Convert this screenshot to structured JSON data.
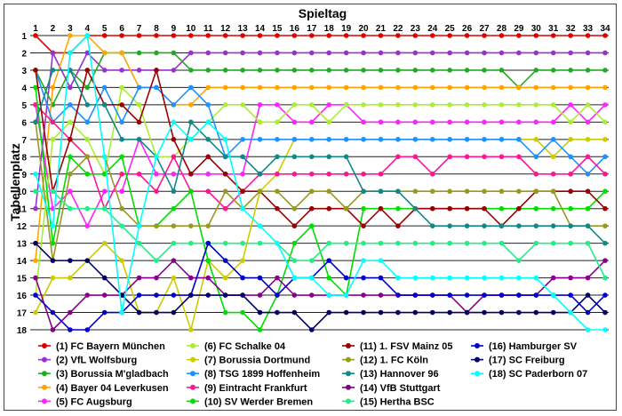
{
  "chart_data": {
    "type": "line",
    "xlabel": "Spieltag",
    "ylabel": "Tabellenplatz",
    "x": [
      1,
      2,
      3,
      4,
      5,
      6,
      7,
      8,
      9,
      10,
      11,
      12,
      13,
      14,
      15,
      16,
      17,
      18,
      19,
      20,
      21,
      22,
      23,
      24,
      25,
      26,
      27,
      28,
      29,
      30,
      31,
      32,
      33,
      34
    ],
    "ylim": [
      1,
      18
    ],
    "y_inverted": true,
    "grid": "horizontal",
    "legend_position": "bottom",
    "series": [
      {
        "name": "(1) FC Bayern München",
        "color": "#dd0000",
        "values": [
          1,
          2,
          2,
          1,
          1,
          1,
          1,
          1,
          1,
          1,
          1,
          1,
          1,
          1,
          1,
          1,
          1,
          1,
          1,
          1,
          1,
          1,
          1,
          1,
          1,
          1,
          1,
          1,
          1,
          1,
          1,
          1,
          1,
          1
        ]
      },
      {
        "name": "(2) VfL Wolfsburg",
        "color": "#9932cc",
        "values": [
          11,
          2,
          4,
          2,
          3,
          3,
          3,
          3,
          3,
          2,
          2,
          2,
          2,
          2,
          2,
          2,
          2,
          2,
          2,
          2,
          2,
          2,
          2,
          2,
          2,
          2,
          2,
          2,
          2,
          2,
          2,
          2,
          2,
          2
        ]
      },
      {
        "name": "(3) Borussia M'gladbach",
        "color": "#22aa22",
        "values": [
          3,
          5,
          3,
          4,
          2,
          2,
          2,
          2,
          2,
          3,
          3,
          3,
          3,
          3,
          3,
          3,
          3,
          3,
          3,
          3,
          3,
          3,
          3,
          3,
          3,
          3,
          3,
          3,
          4,
          3,
          3,
          3,
          3,
          3
        ]
      },
      {
        "name": "(4) Bayer 04 Leverkusen",
        "color": "#ffa500",
        "values": [
          14,
          4,
          1,
          1,
          2,
          2,
          4,
          4,
          5,
          5,
          4,
          4,
          4,
          4,
          4,
          4,
          4,
          4,
          4,
          4,
          4,
          4,
          4,
          4,
          4,
          4,
          4,
          4,
          4,
          4,
          4,
          4,
          4,
          4
        ]
      },
      {
        "name": "(5) FC Augsburg",
        "color": "#ff22ff",
        "values": [
          5,
          11,
          10,
          12,
          10,
          10,
          7,
          9,
          9,
          9,
          9,
          9,
          9,
          5,
          5,
          6,
          6,
          5,
          5,
          6,
          6,
          6,
          6,
          6,
          6,
          6,
          6,
          6,
          6,
          6,
          6,
          5,
          6,
          5
        ]
      },
      {
        "name": "(6) FC Schalke 04",
        "color": "#aaee33",
        "values": [
          16,
          7,
          6,
          7,
          9,
          4,
          5,
          8,
          8,
          7,
          6,
          5,
          5,
          6,
          6,
          5,
          5,
          6,
          5,
          5,
          5,
          5,
          5,
          5,
          5,
          5,
          5,
          5,
          5,
          5,
          5,
          6,
          5,
          6
        ]
      },
      {
        "name": "(7) Borussia Dortmund",
        "color": "#cccc00",
        "values": [
          17,
          15,
          15,
          14,
          13,
          14,
          17,
          17,
          15,
          18,
          14,
          15,
          14,
          10,
          9,
          7,
          7,
          7,
          7,
          7,
          7,
          7,
          7,
          7,
          7,
          7,
          7,
          7,
          7,
          7,
          8,
          7,
          7,
          7
        ]
      },
      {
        "name": "(8) TSG 1899 Hoffenheim",
        "color": "#1e90ff",
        "values": [
          3,
          6,
          5,
          6,
          4,
          6,
          4,
          4,
          5,
          4,
          5,
          8,
          7,
          7,
          7,
          7,
          7,
          7,
          7,
          7,
          7,
          7,
          7,
          7,
          7,
          7,
          7,
          7,
          7,
          8,
          7,
          8,
          9,
          8
        ]
      },
      {
        "name": "(9) Eintracht Frankfurt",
        "color": "#ff1493",
        "values": [
          5,
          6,
          7,
          8,
          11,
          9,
          9,
          10,
          8,
          10,
          10,
          11,
          10,
          9,
          9,
          9,
          9,
          9,
          9,
          9,
          9,
          8,
          8,
          9,
          8,
          8,
          8,
          8,
          8,
          9,
          9,
          9,
          8,
          9
        ]
      },
      {
        "name": "(10) SV Werder Bremen",
        "color": "#00dd00",
        "values": [
          4,
          13,
          8,
          9,
          9,
          8,
          12,
          12,
          11,
          10,
          14,
          17,
          17,
          18,
          16,
          13,
          12,
          15,
          16,
          11,
          11,
          11,
          11,
          11,
          11,
          11,
          11,
          11,
          11,
          11,
          11,
          11,
          11,
          10
        ]
      },
      {
        "name": "(11) 1. FSV Mainz 05",
        "color": "#990000",
        "values": [
          3,
          10,
          7,
          3,
          5,
          5,
          6,
          3,
          7,
          9,
          8,
          9,
          10,
          10,
          11,
          12,
          11,
          11,
          11,
          12,
          11,
          12,
          11,
          11,
          11,
          11,
          11,
          12,
          11,
          10,
          10,
          10,
          10,
          11
        ]
      },
      {
        "name": "(12) 1. FC Köln",
        "color": "#999922",
        "values": [
          6,
          14,
          9,
          8,
          8,
          11,
          12,
          12,
          12,
          12,
          12,
          10,
          11,
          10,
          10,
          11,
          10,
          10,
          11,
          10,
          10,
          10,
          10,
          10,
          10,
          10,
          10,
          10,
          10,
          10,
          10,
          12,
          12,
          12
        ]
      },
      {
        "name": "(13) Hannover 96",
        "color": "#108888",
        "values": [
          6,
          3,
          3,
          5,
          5,
          7,
          7,
          8,
          10,
          6,
          7,
          8,
          8,
          9,
          8,
          8,
          8,
          8,
          8,
          10,
          10,
          10,
          11,
          12,
          12,
          12,
          12,
          12,
          12,
          12,
          12,
          12,
          12,
          13
        ]
      },
      {
        "name": "(14) VfB Stuttgart",
        "color": "#880088",
        "values": [
          15,
          18,
          17,
          16,
          16,
          16,
          15,
          15,
          14,
          15,
          15,
          16,
          16,
          16,
          15,
          16,
          16,
          16,
          16,
          16,
          16,
          16,
          16,
          16,
          16,
          17,
          16,
          16,
          16,
          16,
          15,
          15,
          15,
          14
        ]
      },
      {
        "name": "(15) Hertha BSC",
        "color": "#22ee88",
        "values": [
          10,
          10,
          11,
          11,
          11,
          12,
          13,
          14,
          13,
          13,
          13,
          13,
          13,
          13,
          13,
          14,
          14,
          13,
          13,
          13,
          13,
          13,
          13,
          13,
          13,
          13,
          13,
          13,
          14,
          13,
          13,
          13,
          13,
          15
        ]
      },
      {
        "name": "(16) Hamburger SV",
        "color": "#0000cc",
        "values": [
          16,
          17,
          18,
          18,
          17,
          17,
          16,
          16,
          16,
          16,
          13,
          14,
          15,
          15,
          16,
          15,
          15,
          14,
          15,
          15,
          15,
          16,
          16,
          16,
          16,
          16,
          16,
          16,
          16,
          16,
          16,
          16,
          17,
          16
        ]
      },
      {
        "name": "(17) SC Freiburg",
        "color": "#000066",
        "values": [
          13,
          14,
          14,
          14,
          15,
          16,
          17,
          17,
          17,
          16,
          16,
          16,
          16,
          17,
          17,
          17,
          18,
          17,
          17,
          17,
          17,
          17,
          17,
          17,
          17,
          17,
          17,
          17,
          17,
          17,
          17,
          17,
          16,
          17
        ]
      },
      {
        "name": "(18) SC Paderborn 07",
        "color": "#00ffff",
        "values": [
          9,
          12,
          2,
          1,
          8,
          17,
          12,
          8,
          6,
          7,
          6,
          7,
          11,
          12,
          13,
          15,
          15,
          16,
          16,
          14,
          14,
          15,
          15,
          15,
          15,
          15,
          15,
          15,
          15,
          15,
          16,
          17,
          18,
          18
        ]
      }
    ]
  }
}
